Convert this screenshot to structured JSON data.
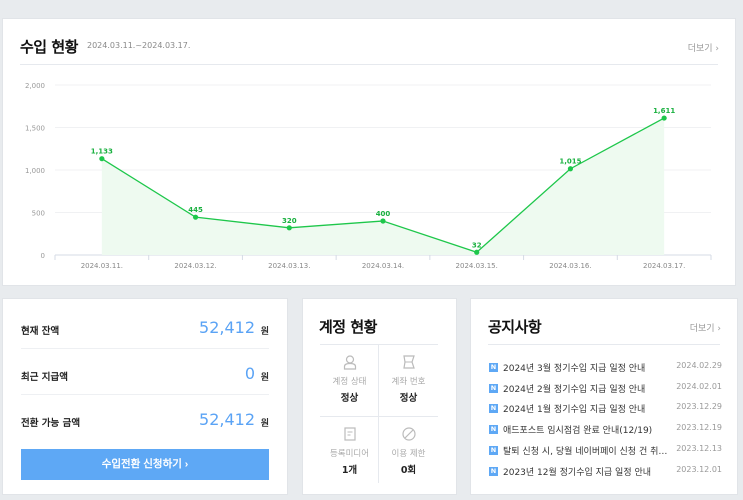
{
  "income": {
    "title": "수입 현황",
    "range": "2024.03.11.~2024.03.17.",
    "more": "더보기 ›"
  },
  "chart_data": {
    "type": "area",
    "title": "수입 현황",
    "x": [
      "2024.03.11.",
      "2024.03.12.",
      "2024.03.13.",
      "2024.03.14.",
      "2024.03.15.",
      "2024.03.16.",
      "2024.03.17."
    ],
    "values": [
      1133,
      445,
      320,
      400,
      32,
      1015,
      1611
    ],
    "labels": [
      "1,133",
      "445",
      "320",
      "400",
      "32",
      "1,015",
      "1,611"
    ],
    "yticks": [
      "0",
      "500",
      "1,000",
      "1,500",
      "2,000"
    ],
    "ylim": [
      0,
      2000
    ],
    "grid": true,
    "color": "#1ec74b",
    "fill": "#eefaf0"
  },
  "balance": {
    "rows": [
      {
        "label": "현재 잔액",
        "value": "52,412",
        "unit": "원"
      },
      {
        "label": "최근 지급액",
        "value": "0",
        "unit": "원"
      },
      {
        "label": "전환 가능 금액",
        "value": "52,412",
        "unit": "원"
      }
    ],
    "button": "수입전환 신청하기  ›"
  },
  "account": {
    "title": "계정 현황",
    "cells": [
      {
        "label": "계정 상태",
        "value": "정상",
        "icon": "user-icon"
      },
      {
        "label": "계좌 번호",
        "value": "정상",
        "icon": "bankbook-icon"
      },
      {
        "label": "등록미디어",
        "value": "1개",
        "icon": "document-icon"
      },
      {
        "label": "이용 제한",
        "value": "0회",
        "icon": "prohibited-icon"
      }
    ]
  },
  "notice": {
    "title": "공지사항",
    "more": "더보기 ›",
    "badge": "N",
    "items": [
      {
        "text": "2024년 3월 정기수입 지급 일정 안내",
        "date": "2024.02.29"
      },
      {
        "text": "2024년 2월 정기수입 지급 일정 안내",
        "date": "2024.02.01"
      },
      {
        "text": "2024년 1월 정기수입 지급 일정 안내",
        "date": "2023.12.29"
      },
      {
        "text": "애드포스트 임시점검 완료 안내(12/19)",
        "date": "2023.12.19"
      },
      {
        "text": "탈퇴 신청 시, 당월 네이버페이 신청 건 취소 안내",
        "date": "2023.12.13"
      },
      {
        "text": "2023년 12월 정기수입 지급 일정 안내",
        "date": "2023.12.01"
      }
    ]
  }
}
